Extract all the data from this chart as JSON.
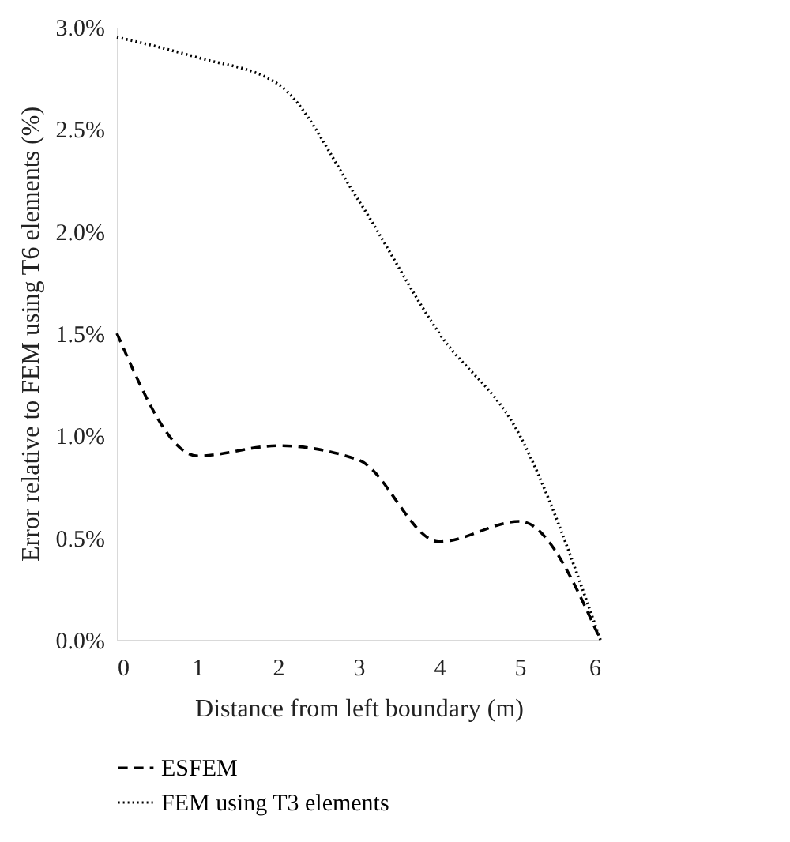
{
  "chart_data": {
    "type": "line",
    "xlabel": "Distance from left boundary (m)",
    "ylabel": "Error relative to FEM using T6 elements (%)",
    "x": [
      0,
      1,
      2,
      3,
      4,
      5,
      6
    ],
    "series": [
      {
        "name": "ESFEM",
        "color": "#000000",
        "line_style": "dashed",
        "values": [
          1.5,
          0.9,
          0.95,
          0.88,
          0.48,
          0.58,
          0.0
        ]
      },
      {
        "name": "FEM using T3 elements",
        "color": "#000000",
        "line_style": "dotted",
        "values": [
          2.95,
          2.85,
          2.72,
          2.15,
          1.5,
          1.0,
          0.0
        ]
      }
    ],
    "xlim": [
      0,
      6
    ],
    "xticks": [
      0,
      1,
      2,
      3,
      4,
      5,
      6
    ],
    "ylim": [
      0,
      3
    ],
    "yticks": [
      {
        "value": 0,
        "label": "0.0%"
      },
      {
        "value": 0.5,
        "label": "0.5%"
      },
      {
        "value": 1,
        "label": "1.0%"
      },
      {
        "value": 1.5,
        "label": "1.5%"
      },
      {
        "value": 2,
        "label": "2.0%"
      },
      {
        "value": 2.5,
        "label": "2.5%"
      },
      {
        "value": 3,
        "label": "3.0%"
      }
    ],
    "grid": false,
    "legend": "bottom",
    "marker": "none"
  }
}
